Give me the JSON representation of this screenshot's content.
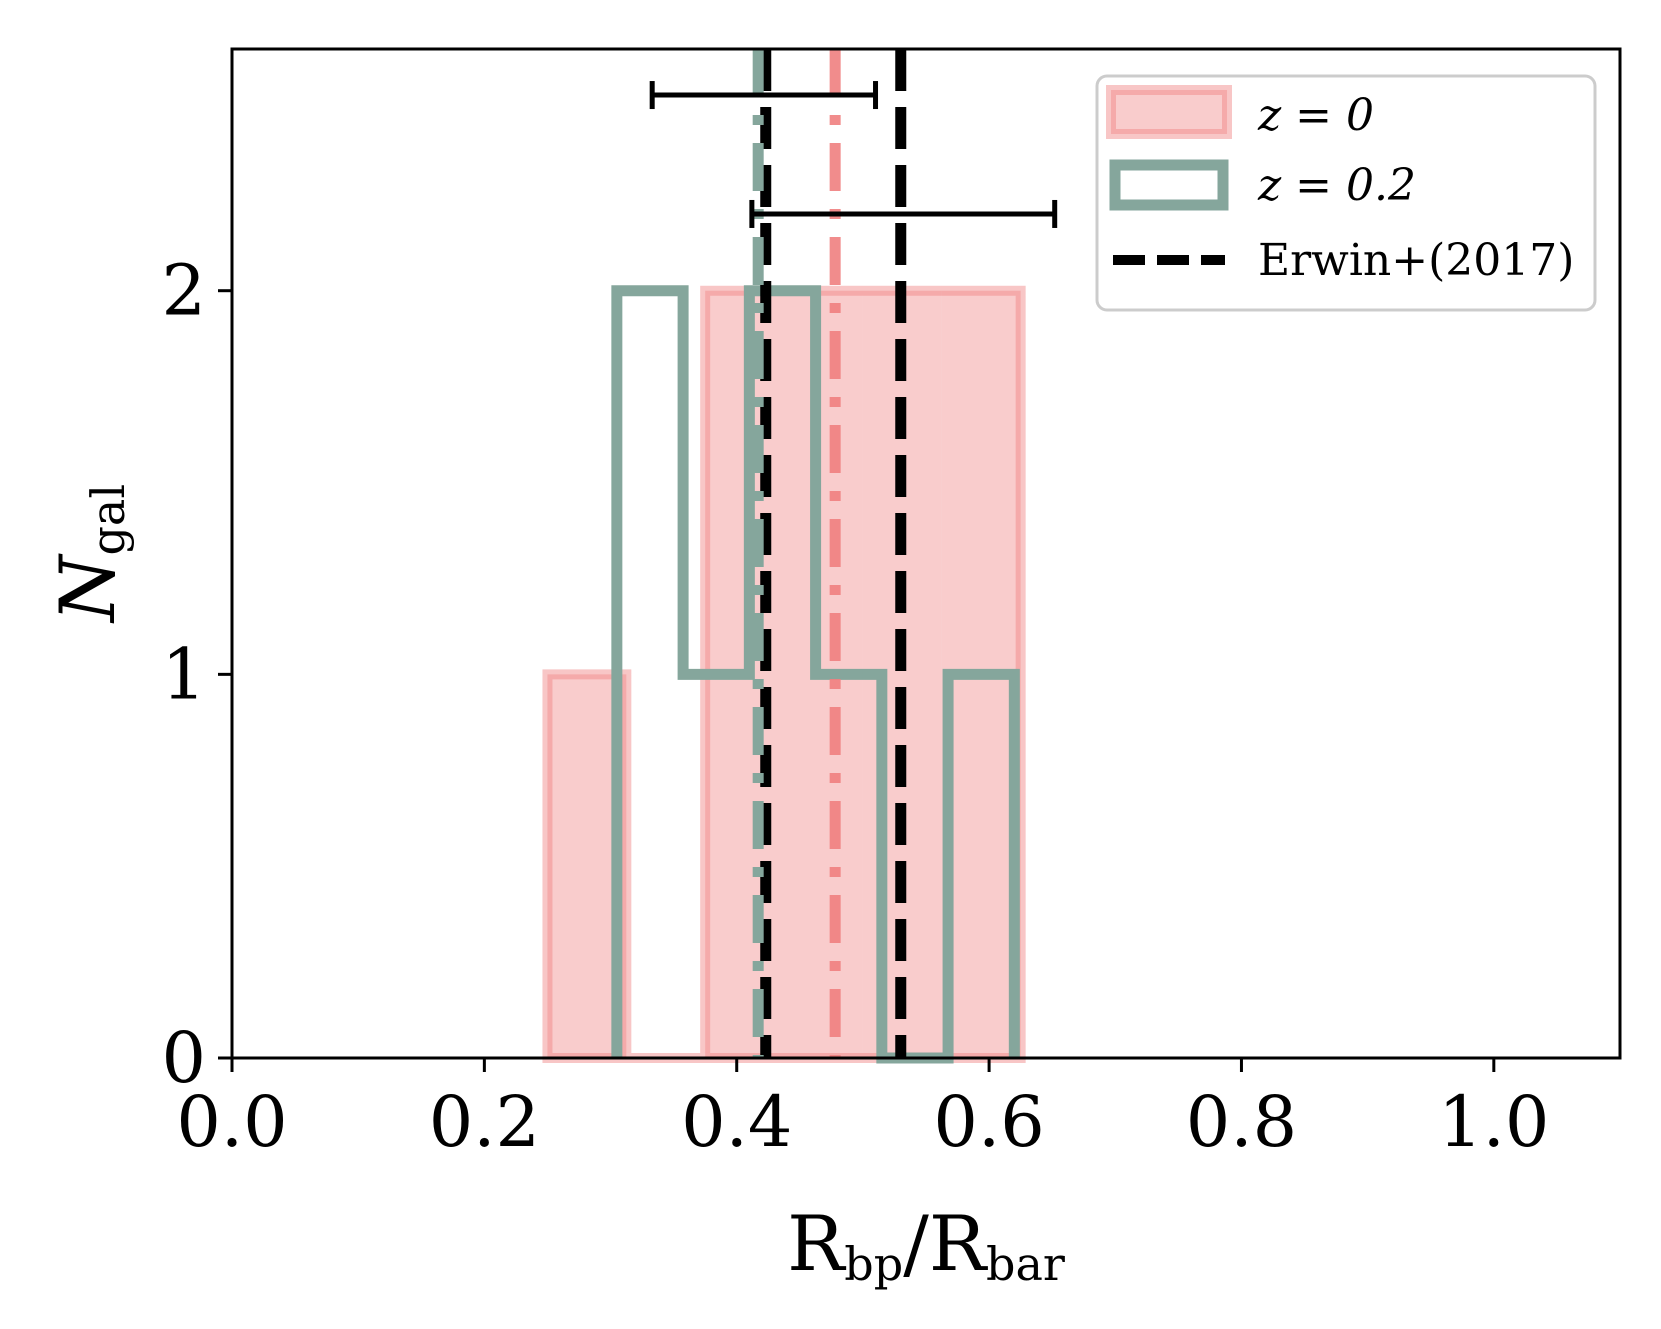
{
  "chart_data": {
    "type": "histogram",
    "xlabel": {
      "main1": "R",
      "sub1": "bp",
      "sep": "/",
      "main2": "R",
      "sub2": "bar"
    },
    "ylabel": {
      "main": "N",
      "sub": "gal"
    },
    "xlim": [
      0.0,
      1.1
    ],
    "ylim": [
      0,
      2.63
    ],
    "xticks": [
      "0.0",
      "0.2",
      "0.4",
      "0.6",
      "0.8",
      "1.0"
    ],
    "xtick_values": [
      0.0,
      0.2,
      0.4,
      0.6,
      0.8,
      1.0
    ],
    "yticks": [
      "0",
      "1",
      "2"
    ],
    "ytick_values": [
      0,
      1,
      2
    ],
    "grid": false,
    "legend_position": "top-right",
    "series": [
      {
        "name": "z = 0",
        "style": "filled",
        "color": "#f08080",
        "bin_edges": [
          0.25,
          0.3125,
          0.375,
          0.4375,
          0.5,
          0.5625,
          0.625
        ],
        "counts": [
          1,
          0,
          2,
          2,
          2,
          2
        ],
        "median": 0.478
      },
      {
        "name": "z = 0.2",
        "style": "step",
        "color": "#85a69c",
        "bin_edges": [
          0.305,
          0.3575,
          0.41,
          0.4625,
          0.515,
          0.5675,
          0.62
        ],
        "counts": [
          2,
          1,
          2,
          1,
          0,
          1
        ],
        "median": 0.417
      }
    ],
    "reference": {
      "name": "Erwin+(2017)",
      "color": "#000000",
      "lines": [
        0.423,
        0.53
      ],
      "errorbars": [
        {
          "xmin": 0.333,
          "xmax": 0.51,
          "y": 2.51
        },
        {
          "xmin": 0.412,
          "xmax": 0.652,
          "y": 2.2
        }
      ]
    },
    "legend": [
      {
        "label": "z = 0",
        "type": "patch-filled"
      },
      {
        "label": "z = 0.2",
        "type": "patch-step"
      },
      {
        "label": "Erwin+(2017)",
        "type": "dashed-line"
      }
    ]
  }
}
